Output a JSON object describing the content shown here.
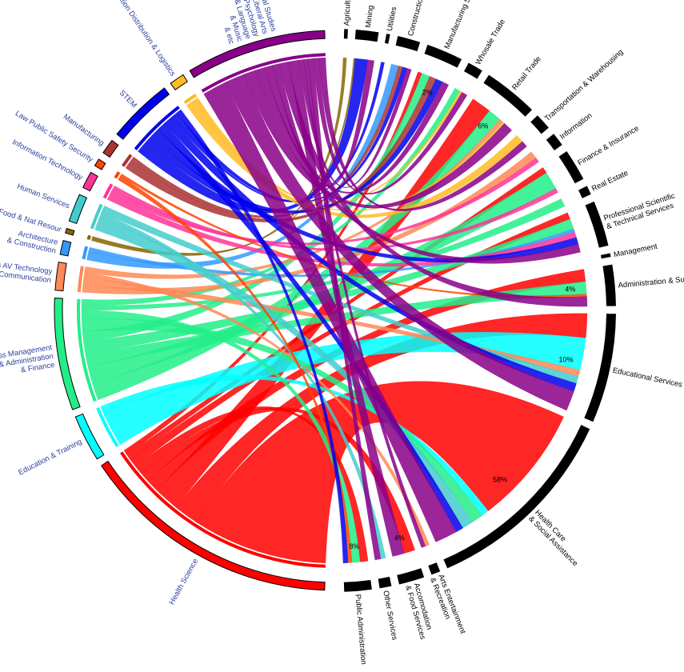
{
  "chart_data": {
    "type": "chord",
    "title": "",
    "left_groups": [
      {
        "name": "Health Science",
        "lines": [
          "Health Science"
        ],
        "value": 28,
        "color": "#ff0000"
      },
      {
        "name": "Education & Training",
        "lines": [
          "Education & Training"
        ],
        "value": 5,
        "color": "#00ffff"
      },
      {
        "name": "Business Management & Administration & Finance",
        "lines": [
          "Business Management",
          "& Administration",
          "& Finance"
        ],
        "value": 12,
        "color": "#22ee88"
      },
      {
        "name": "Arts AV Technology & Communication",
        "lines": [
          "Arts AV Technology",
          "& Communication"
        ],
        "value": 3,
        "color": "#ff8855"
      },
      {
        "name": "Architecture & Construction",
        "lines": [
          "Architecture",
          "& Construction"
        ],
        "value": 1.5,
        "color": "#3399ff"
      },
      {
        "name": "Agri Food & Nat Resour",
        "lines": [
          "Agri Food & Nat Resour"
        ],
        "value": 0.5,
        "color": "#886600"
      },
      {
        "name": "Human Services",
        "lines": [
          "Human Services"
        ],
        "value": 3,
        "color": "#44cccc"
      },
      {
        "name": "Information Technology",
        "lines": [
          "Information Technology"
        ],
        "value": 1.8,
        "color": "#ff3399"
      },
      {
        "name": "Law Public Safety Security",
        "lines": [
          "Law Public Safety Security"
        ],
        "value": 0.8,
        "color": "#ff4400"
      },
      {
        "name": "Manufacturing",
        "lines": [
          "Manufacturing"
        ],
        "value": 1.6,
        "color": "#aa3333"
      },
      {
        "name": "STEM",
        "lines": [
          "STEM"
        ],
        "value": 7,
        "color": "#0000ee"
      },
      {
        "name": "Transportation Distribution & Logistics",
        "lines": [
          "Transportation Distribution & Logistics"
        ],
        "value": 1.6,
        "color": "#ffbb22"
      },
      {
        "name": "General Studies & Liberal Arts & Psychology & Language & Music & etc",
        "lines": [
          "General Studies",
          "& Liberal Arts",
          "& Psychology",
          "& Language",
          "& Music",
          "& etc"
        ],
        "value": 15,
        "color": "#880088"
      }
    ],
    "right_groups": [
      {
        "name": "Agriculture",
        "lines": [
          "Agriculture"
        ],
        "value": 0.4
      },
      {
        "name": "Mining",
        "lines": [
          "Mining"
        ],
        "value": 2.5
      },
      {
        "name": "Utilities",
        "lines": [
          "Utilities"
        ],
        "value": 0.4
      },
      {
        "name": "Construction",
        "lines": [
          "Construction"
        ],
        "value": 2.5
      },
      {
        "name": "Manufacturing Sector",
        "lines": [
          "Manufacturing Sector"
        ],
        "value": 4,
        "pct": "2%"
      },
      {
        "name": "Whosale Trade",
        "lines": [
          "Whosale Trade"
        ],
        "value": 1.7
      },
      {
        "name": "Retail Trade",
        "lines": [
          "Retail Trade"
        ],
        "value": 6,
        "pct": "6%"
      },
      {
        "name": "Transportation & Warehousing",
        "lines": [
          "Transportation & Warehousing"
        ],
        "value": 1.8
      },
      {
        "name": "Information",
        "lines": [
          "Information"
        ],
        "value": 1.5
      },
      {
        "name": "Finance & Insurance",
        "lines": [
          "Finance & Insurance"
        ],
        "value": 3.5
      },
      {
        "name": "Real Estate",
        "lines": [
          "Real Estate"
        ],
        "value": 1
      },
      {
        "name": "Professional Scientific & Technical Services",
        "lines": [
          "Professional Scientific",
          "& Technical Services"
        ],
        "value": 5
      },
      {
        "name": "Management",
        "lines": [
          "Management"
        ],
        "value": 0.4
      },
      {
        "name": "Administration & Support",
        "lines": [
          "Administration & Support"
        ],
        "value": 4.5,
        "pct": "4%"
      },
      {
        "name": "Educational Services",
        "lines": [
          "Educational Services"
        ],
        "value": 12,
        "pct": "10%"
      },
      {
        "name": "Health Care & Social Assistance",
        "lines": [
          "Health Care",
          "& Social Assistance"
        ],
        "value": 22,
        "pct": "58%"
      },
      {
        "name": "Arts Entertainment & Recreation",
        "lines": [
          "Arts Entertainment",
          "& Recreation"
        ],
        "value": 1
      },
      {
        "name": "Accomodation & Food Services",
        "lines": [
          "Accomodation",
          "& Food Services"
        ],
        "value": 2.8,
        "pct": "4%"
      },
      {
        "name": "Other Services",
        "lines": [
          "Other Services"
        ],
        "value": 1.3
      },
      {
        "name": "Public Administration",
        "lines": [
          "Public Administration"
        ],
        "value": 3,
        "pct": "8%"
      }
    ],
    "flows": [
      {
        "from": "Health Science",
        "to": "Health Care & Social Assistance",
        "value": 16
      },
      {
        "from": "Health Science",
        "to": "Educational Services",
        "value": 3
      },
      {
        "from": "Health Science",
        "to": "Retail Trade",
        "value": 3
      },
      {
        "from": "Health Science",
        "to": "Administration & Support",
        "value": 1.5
      },
      {
        "from": "Health Science",
        "to": "Accomodation & Food Services",
        "value": 1.2
      },
      {
        "from": "Health Science",
        "to": "Public Administration",
        "value": 1
      },
      {
        "from": "Health Science",
        "to": "Professional Scientific & Technical Services",
        "value": 1
      },
      {
        "from": "Health Science",
        "to": "Finance & Insurance",
        "value": 0.7
      },
      {
        "from": "Health Science",
        "to": "Manufacturing Sector",
        "value": 0.6
      },
      {
        "from": "Education & Training",
        "to": "Educational Services",
        "value": 4
      },
      {
        "from": "Education & Training",
        "to": "Health Care & Social Assistance",
        "value": 1
      },
      {
        "from": "Business Management & Administration & Finance",
        "to": "Retail Trade",
        "value": 2
      },
      {
        "from": "Business Management & Administration & Finance",
        "to": "Finance & Insurance",
        "value": 2
      },
      {
        "from": "Business Management & Administration & Finance",
        "to": "Administration & Support",
        "value": 1.5
      },
      {
        "from": "Business Management & Administration & Finance",
        "to": "Professional Scientific & Technical Services",
        "value": 1.5
      },
      {
        "from": "Business Management & Administration & Finance",
        "to": "Manufacturing Sector",
        "value": 1.2
      },
      {
        "from": "Business Management & Administration & Finance",
        "to": "Health Care & Social Assistance",
        "value": 1.5
      },
      {
        "from": "Business Management & Administration & Finance",
        "to": "Public Administration",
        "value": 1
      },
      {
        "from": "Business Management & Administration & Finance",
        "to": "Real Estate",
        "value": 0.6
      },
      {
        "from": "Business Management & Administration & Finance",
        "to": "Whosale Trade",
        "value": 0.7
      },
      {
        "from": "Arts AV Technology & Communication",
        "to": "Information",
        "value": 0.8
      },
      {
        "from": "Arts AV Technology & Communication",
        "to": "Educational Services",
        "value": 0.8
      },
      {
        "from": "Arts AV Technology & Communication",
        "to": "Arts Entertainment & Recreation",
        "value": 0.5
      },
      {
        "from": "Arts AV Technology & Communication",
        "to": "Retail Trade",
        "value": 0.6
      },
      {
        "from": "Architecture & Construction",
        "to": "Construction",
        "value": 1
      },
      {
        "from": "Architecture & Construction",
        "to": "Professional Scientific & Technical Services",
        "value": 0.5
      },
      {
        "from": "Agri Food & Nat Resour",
        "to": "Agriculture",
        "value": 0.3
      },
      {
        "from": "Agri Food & Nat Resour",
        "to": "Mining",
        "value": 0.2
      },
      {
        "from": "Human Services",
        "to": "Health Care & Social Assistance",
        "value": 1.5
      },
      {
        "from": "Human Services",
        "to": "Other Services",
        "value": 0.6
      },
      {
        "from": "Human Services",
        "to": "Educational Services",
        "value": 0.9
      },
      {
        "from": "Information Technology",
        "to": "Professional Scientific & Technical Services",
        "value": 0.8
      },
      {
        "from": "Information Technology",
        "to": "Information",
        "value": 0.5
      },
      {
        "from": "Information Technology",
        "to": "Finance & Insurance",
        "value": 0.5
      },
      {
        "from": "Law Public Safety Security",
        "to": "Public Administration",
        "value": 0.5
      },
      {
        "from": "Law Public Safety Security",
        "to": "Administration & Support",
        "value": 0.3
      },
      {
        "from": "Manufacturing",
        "to": "Manufacturing Sector",
        "value": 1
      },
      {
        "from": "Manufacturing",
        "to": "Construction",
        "value": 0.6
      },
      {
        "from": "STEM",
        "to": "Mining",
        "value": 1.5
      },
      {
        "from": "STEM",
        "to": "Manufacturing Sector",
        "value": 1
      },
      {
        "from": "STEM",
        "to": "Professional Scientific & Technical Services",
        "value": 1
      },
      {
        "from": "STEM",
        "to": "Health Care & Social Assistance",
        "value": 1
      },
      {
        "from": "STEM",
        "to": "Educational Services",
        "value": 1
      },
      {
        "from": "STEM",
        "to": "Utilities",
        "value": 0.3
      },
      {
        "from": "STEM",
        "to": "Construction",
        "value": 0.6
      },
      {
        "from": "STEM",
        "to": "Public Administration",
        "value": 0.6
      },
      {
        "from": "Transportation Distribution & Logistics",
        "to": "Transportation & Warehousing",
        "value": 1
      },
      {
        "from": "Transportation Distribution & Logistics",
        "to": "Whosale Trade",
        "value": 0.3
      },
      {
        "from": "Transportation Distribution & Logistics",
        "to": "Retail Trade",
        "value": 0.3
      },
      {
        "from": "General Studies & Liberal Arts & Psychology & Language & Music & etc",
        "to": "Health Care & Social Assistance",
        "value": 3
      },
      {
        "from": "General Studies & Liberal Arts & Psychology & Language & Music & etc",
        "to": "Educational Services",
        "value": 2.5
      },
      {
        "from": "General Studies & Liberal Arts & Psychology & Language & Music & etc",
        "to": "Retail Trade",
        "value": 1.5
      },
      {
        "from": "General Studies & Liberal Arts & Psychology & Language & Music & etc",
        "to": "Professional Scientific & Technical Services",
        "value": 1.2
      },
      {
        "from": "General Studies & Liberal Arts & Psychology & Language & Music & etc",
        "to": "Manufacturing Sector",
        "value": 1
      },
      {
        "from": "General Studies & Liberal Arts & Psychology & Language & Music & etc",
        "to": "Mining",
        "value": 0.8
      },
      {
        "from": "General Studies & Liberal Arts & Psychology & Language & Music & etc",
        "to": "Administration & Support",
        "value": 1.2
      },
      {
        "from": "General Studies & Liberal Arts & Psychology & Language & Music & etc",
        "to": "Accomodation & Food Services",
        "value": 1.3
      },
      {
        "from": "General Studies & Liberal Arts & Psychology & Language & Music & etc",
        "to": "Construction",
        "value": 0.6
      },
      {
        "from": "General Studies & Liberal Arts & Psychology & Language & Music & etc",
        "to": "Arts Entertainment & Recreation",
        "value": 0.5
      },
      {
        "from": "General Studies & Liberal Arts & Psychology & Language & Music & etc",
        "to": "Other Services",
        "value": 0.7
      },
      {
        "from": "General Studies & Liberal Arts & Psychology & Language & Music & etc",
        "to": "Whosale Trade",
        "value": 0.7
      },
      {
        "from": "General Studies & Liberal Arts & Psychology & Language & Music & etc",
        "to": "Transportation & Warehousing",
        "value": 0.8
      }
    ],
    "colors": {
      "right_arc": "#000000",
      "left_label": "#2b3f9e",
      "right_label": "#000000"
    }
  }
}
